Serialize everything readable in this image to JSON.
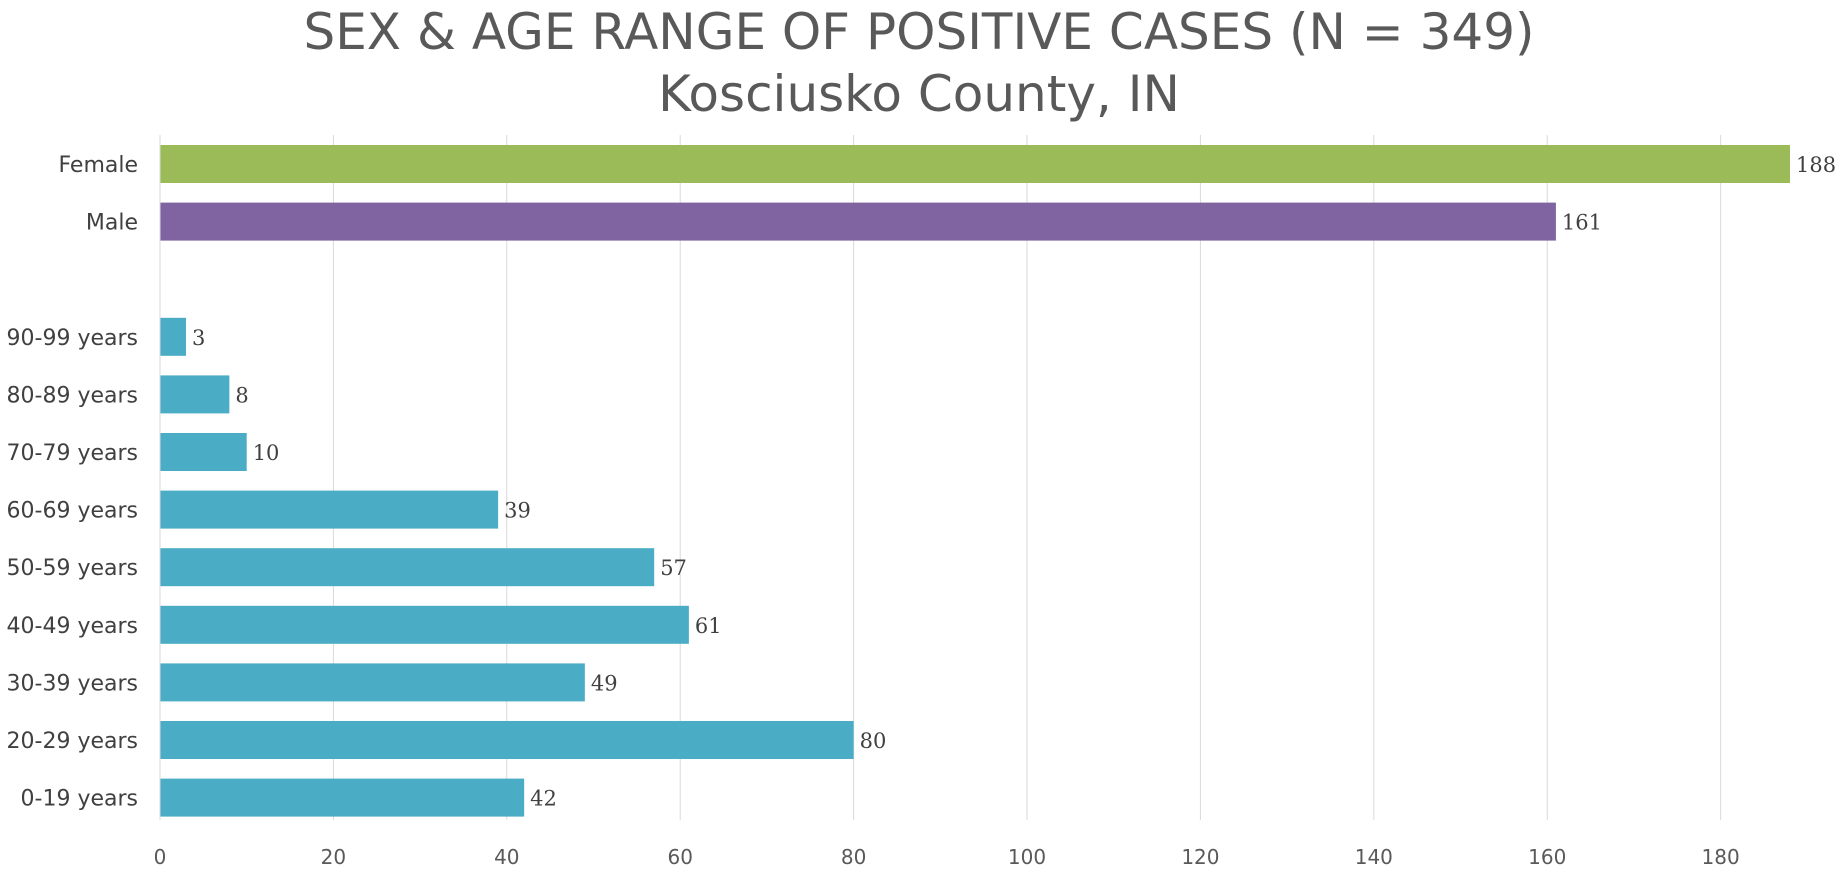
{
  "chart_data": {
    "type": "bar",
    "orientation": "horizontal",
    "title": "SEX & AGE RANGE OF POSITIVE CASES (N = 349)",
    "subtitle": "Kosciusko County, IN",
    "xlim": [
      0,
      188
    ],
    "xticks": [
      0,
      20,
      40,
      60,
      80,
      100,
      120,
      140,
      160,
      180
    ],
    "grid": true,
    "legend": "none",
    "groups": [
      {
        "color": "#9BBB59",
        "categories": [
          "Female"
        ],
        "values": [
          188
        ]
      },
      {
        "color": "#8064A2",
        "categories": [
          "Male"
        ],
        "values": [
          161
        ]
      },
      {
        "color": "#4BACC6",
        "categories": [
          "90-99 years",
          "80-89 years",
          "70-79 years",
          "60-69 years",
          "50-59 years",
          "40-49 years",
          "30-39 years",
          "20-29 years",
          "0-19 years"
        ],
        "values": [
          3,
          8,
          10,
          39,
          57,
          61,
          49,
          80,
          42
        ]
      }
    ]
  }
}
